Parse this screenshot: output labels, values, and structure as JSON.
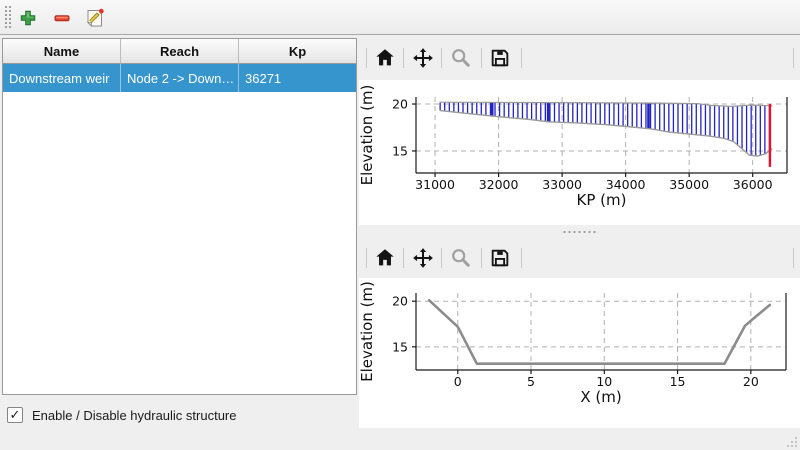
{
  "window": {
    "background": "#efefef"
  },
  "main_toolbar": {
    "buttons": [
      {
        "id": "add-structure",
        "icon": "plus-icon"
      },
      {
        "id": "remove-structure",
        "icon": "minus-icon"
      },
      {
        "id": "edit-structure",
        "icon": "edit-icon"
      }
    ]
  },
  "structures_table": {
    "columns": [
      "Name",
      "Reach",
      "Kp"
    ],
    "rows": [
      {
        "name": "Downstream weir",
        "reach": "Node 2 -> Down…",
        "kp": "36271"
      }
    ],
    "selection_color": "#3795cd"
  },
  "enable_checkbox": {
    "label": "Enable / Disable hydraulic structure",
    "checked": true,
    "check_glyph": "✓"
  },
  "plot_toolbar": {
    "icons": [
      {
        "name": "home",
        "enabled": true
      },
      {
        "name": "pan",
        "enabled": true
      },
      {
        "name": "zoom",
        "enabled": false
      },
      {
        "name": "save",
        "enabled": true
      }
    ]
  },
  "chart_data": [
    {
      "type": "area",
      "title": "",
      "xlabel": "KP (m)",
      "ylabel": "Elevation (m)",
      "xlim": [
        30700,
        36540
      ],
      "ylim": [
        12.65,
        20.75
      ],
      "xticks": [
        31000,
        32000,
        33000,
        34000,
        35000,
        36000
      ],
      "yticks": [
        15,
        20
      ],
      "grid": true,
      "grid_color": "#b0b0b0",
      "series": [
        {
          "name": "profile-bottom",
          "color": "#9a9a9a",
          "width": 1.4,
          "x": [
            31080,
            31500,
            32000,
            32500,
            32800,
            33200,
            33700,
            34100,
            34400,
            34700,
            35000,
            35300,
            35550,
            35700,
            35820,
            35950,
            36080,
            36200,
            36300
          ],
          "y": [
            19.3,
            19.0,
            18.65,
            18.35,
            18.1,
            18.0,
            17.8,
            17.55,
            17.35,
            17.0,
            16.8,
            16.6,
            16.35,
            16.0,
            15.3,
            14.55,
            14.45,
            14.7,
            15.2
          ]
        },
        {
          "name": "profile-top",
          "color": "#9a9a9a",
          "width": 1.2,
          "x": [
            31080,
            33000,
            34500,
            35130,
            35350,
            35650,
            36000,
            36300
          ],
          "y": [
            20.2,
            20.15,
            20.1,
            20.05,
            19.85,
            19.75,
            19.9,
            19.8
          ]
        }
      ],
      "hatch": {
        "color": "#2222c4",
        "start": 31080,
        "end": 36300,
        "step": 72,
        "emphasis": [
          31900,
          32780,
          34360
        ]
      },
      "marker_line": {
        "x": 36271,
        "y": [
          13.3,
          20.0
        ],
        "color": "#e8112d"
      }
    },
    {
      "type": "line",
      "title": "",
      "xlabel": "X (m)",
      "ylabel": "Elevation (m)",
      "xlim": [
        -2.85,
        22.4
      ],
      "ylim": [
        12.46,
        20.9
      ],
      "xticks": [
        0,
        5,
        10,
        15,
        20
      ],
      "yticks": [
        15,
        20
      ],
      "grid": true,
      "grid_color": "#b0b0b0",
      "series": [
        {
          "name": "cross-section",
          "color": "#8c8c8c",
          "width": 2.6,
          "x": [
            -1.95,
            0.0,
            1.3,
            18.2,
            19.6,
            20.1,
            21.3
          ],
          "y": [
            20.1,
            17.2,
            13.15,
            13.15,
            17.3,
            18.0,
            19.6
          ]
        }
      ]
    }
  ]
}
